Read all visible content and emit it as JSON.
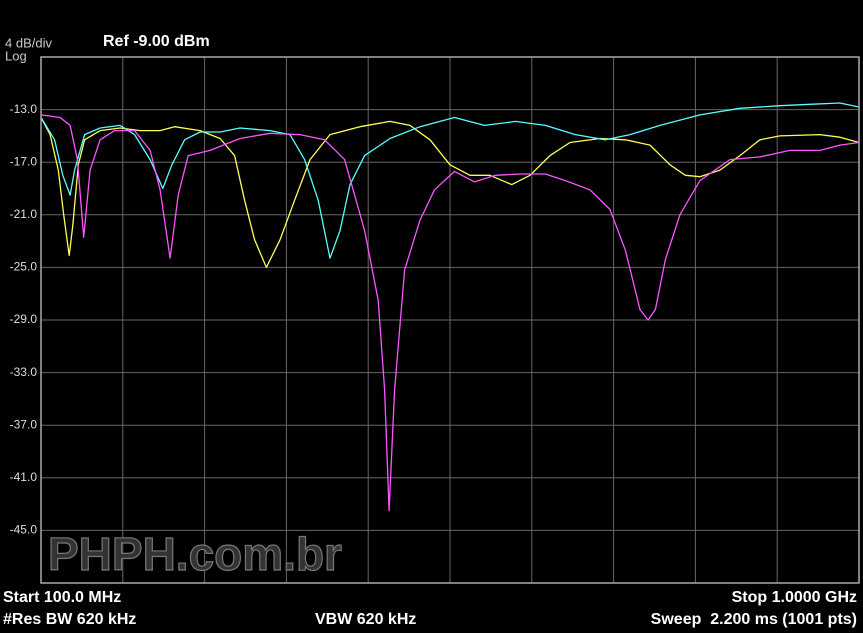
{
  "chart_data": {
    "type": "line",
    "scale_label": "4 dB/div",
    "scale_type": "Log",
    "reference": "Ref -9.00 dBm",
    "start_label": "Start 100.0 MHz",
    "stop_label": "Stop 1.0000 GHz",
    "rbw_label": "#Res BW 620 kHz",
    "vbw_label": "VBW 620 kHz",
    "sweep_label": "Sweep  2.200 ms (1001 pts)",
    "watermark": "PHPH.com.br",
    "xlim": [
      100,
      1000
    ],
    "ylim": [
      -49,
      -9
    ],
    "grid": true,
    "yticks": [
      {
        "value": -13,
        "label": "-13.0"
      },
      {
        "value": -17,
        "label": "-17.0"
      },
      {
        "value": -21,
        "label": "-21.0"
      },
      {
        "value": -25,
        "label": "-25.0"
      },
      {
        "value": -29,
        "label": "-29.0"
      },
      {
        "value": -33,
        "label": "-33.0"
      },
      {
        "value": -37,
        "label": "-37.0"
      },
      {
        "value": -41,
        "label": "-41.0"
      },
      {
        "value": -45,
        "label": "-45.0"
      }
    ],
    "series": [
      {
        "color": "#ffff55",
        "x": [
          100,
          110,
          119,
          125,
          131,
          135,
          141,
          148,
          165,
          187,
          209,
          231,
          247,
          275,
          297,
          313,
          324,
          335,
          348,
          363,
          379,
          396,
          418,
          451,
          484,
          506,
          528,
          550,
          572,
          594,
          618,
          638,
          660,
          682,
          715,
          743,
          770,
          792,
          809,
          825,
          847,
          869,
          891,
          913,
          957,
          979,
          1000
        ],
        "values": [
          -13.6,
          -14.9,
          -17.6,
          -21.0,
          -24.1,
          -21.8,
          -17.2,
          -15.3,
          -14.6,
          -14.4,
          -14.6,
          -14.6,
          -14.3,
          -14.6,
          -15.2,
          -16.5,
          -19.9,
          -22.9,
          -25.0,
          -22.9,
          -19.9,
          -16.8,
          -14.9,
          -14.3,
          -13.9,
          -14.2,
          -15.3,
          -17.2,
          -18.0,
          -18.0,
          -18.7,
          -18.0,
          -16.5,
          -15.5,
          -15.2,
          -15.3,
          -15.7,
          -17.2,
          -18.0,
          -18.1,
          -17.6,
          -16.5,
          -15.3,
          -15.0,
          -14.9,
          -15.1,
          -15.5
        ]
      },
      {
        "color": "#55ffff",
        "x": [
          100,
          115,
          124,
          132,
          137,
          148,
          165,
          187,
          203,
          220,
          234,
          244,
          258,
          275,
          297,
          319,
          352,
          374,
          390,
          405,
          418,
          429,
          440,
          456,
          484,
          517,
          555,
          588,
          622,
          655,
          688,
          721,
          748,
          781,
          825,
          869,
          913,
          946,
          979,
          1000
        ],
        "values": [
          -13.6,
          -15.3,
          -18.0,
          -19.5,
          -17.6,
          -14.9,
          -14.4,
          -14.2,
          -14.9,
          -16.8,
          -19.0,
          -17.2,
          -15.3,
          -14.7,
          -14.7,
          -14.4,
          -14.6,
          -14.9,
          -16.8,
          -19.9,
          -24.3,
          -22.2,
          -18.7,
          -16.5,
          -15.2,
          -14.3,
          -13.6,
          -14.2,
          -13.9,
          -14.2,
          -14.9,
          -15.3,
          -14.9,
          -14.2,
          -13.4,
          -12.9,
          -12.7,
          -12.6,
          -12.5,
          -12.8
        ]
      },
      {
        "color": "#ff55ff",
        "x": [
          100,
          121,
          132,
          140,
          147,
          154,
          165,
          181,
          203,
          220,
          231,
          242,
          251,
          262,
          286,
          319,
          352,
          385,
          412,
          434,
          456,
          471,
          478,
          483,
          489,
          500,
          517,
          533,
          555,
          577,
          600,
          627,
          655,
          677,
          704,
          726,
          743,
          759,
          768,
          776,
          787,
          803,
          825,
          858,
          891,
          924,
          957,
          979,
          1000
        ],
        "values": [
          -13.4,
          -13.6,
          -14.2,
          -16.8,
          -22.7,
          -17.6,
          -15.3,
          -14.6,
          -14.6,
          -16.1,
          -19.1,
          -24.3,
          -19.5,
          -16.5,
          -16.1,
          -15.2,
          -14.8,
          -14.9,
          -15.3,
          -16.8,
          -22.2,
          -27.5,
          -34.3,
          -43.5,
          -34.3,
          -25.2,
          -21.4,
          -19.1,
          -17.7,
          -18.5,
          -18.0,
          -17.9,
          -17.9,
          -18.4,
          -19.1,
          -20.6,
          -23.7,
          -28.2,
          -29.0,
          -28.2,
          -24.4,
          -21.0,
          -18.4,
          -16.8,
          -16.6,
          -16.1,
          -16.1,
          -15.7,
          -15.5
        ]
      }
    ]
  }
}
